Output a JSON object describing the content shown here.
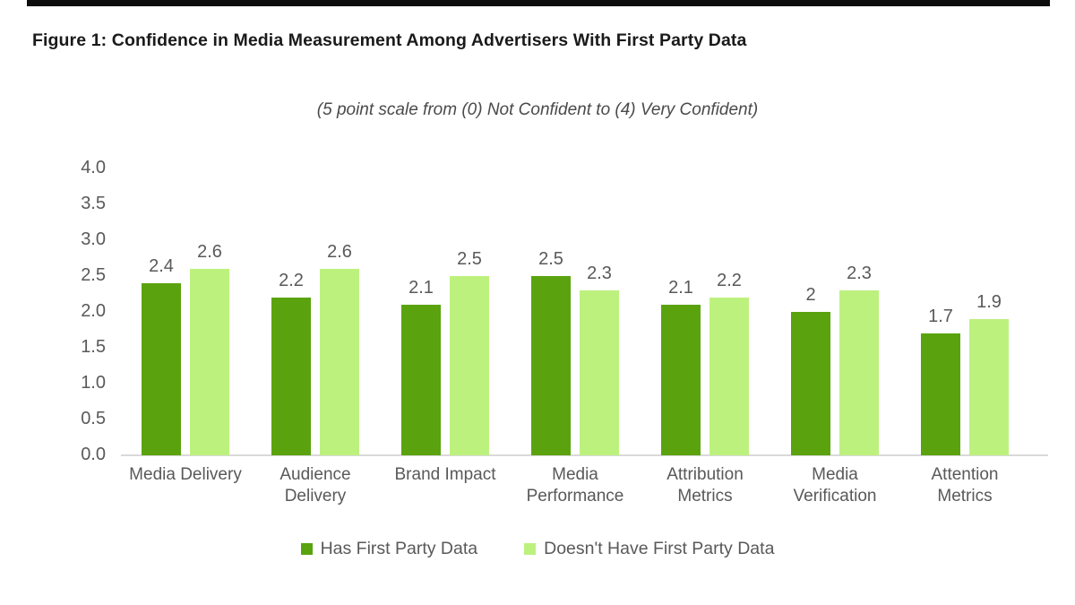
{
  "title": "Figure 1: Confidence in Media Measurement Among Advertisers With First Party Data",
  "subtitle": "(5 point scale from (0) Not Confident to (4) Very Confident)",
  "colors": {
    "has_fpd": "#5aa30f",
    "no_fpd": "#bdf17e",
    "axis_text": "#595959",
    "baseline": "#d9d9d9"
  },
  "chart_data": {
    "type": "bar",
    "title": "Confidence in Media Measurement Among Advertisers With First Party Data",
    "subtitle": "(5 point scale from (0) Not Confident to (4) Very Confident)",
    "categories": [
      "Media Delivery",
      "Audience\nDelivery",
      "Brand Impact",
      "Media\nPerformance",
      "Attribution\nMetrics",
      "Media\nVerification",
      "Attention\nMetrics"
    ],
    "series": [
      {
        "name": "Has First Party Data",
        "color": "#5aa30f",
        "values": [
          2.4,
          2.2,
          2.1,
          2.5,
          2.1,
          2.0,
          1.7
        ],
        "labels": [
          "2.4",
          "2.2",
          "2.1",
          "2.5",
          "2.1",
          "2",
          "1.7"
        ]
      },
      {
        "name": "Doesn't Have First Party Data",
        "color": "#bdf17e",
        "values": [
          2.6,
          2.6,
          2.5,
          2.3,
          2.2,
          2.3,
          1.9
        ],
        "labels": [
          "2.6",
          "2.6",
          "2.5",
          "2.3",
          "2.2",
          "2.3",
          "1.9"
        ]
      }
    ],
    "y_axis": {
      "ticks": [
        "4.0",
        "3.5",
        "3.0",
        "2.5",
        "2.0",
        "1.5",
        "1.0",
        "0.5",
        "0.0"
      ],
      "min": 0.0,
      "max": 4.0,
      "step": 0.5
    },
    "grid": false,
    "legend_position": "bottom"
  }
}
